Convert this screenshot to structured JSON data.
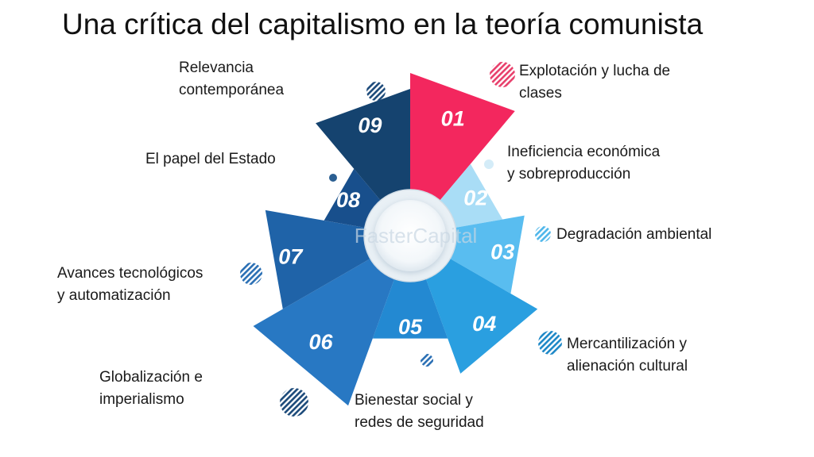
{
  "title": "Una crítica del capitalismo en la teoría comunista",
  "watermark": "FasterCapital",
  "segments": [
    {
      "number": "01",
      "label_lines": [
        "Explotación y lucha de",
        "clases"
      ],
      "color": "#f3275e"
    },
    {
      "number": "02",
      "label_lines": [
        "Ineficiencia económica",
        "y sobreproducción"
      ],
      "color": "#a9ddf6"
    },
    {
      "number": "03",
      "label_lines": [
        "Degradación ambiental"
      ],
      "color": "#59bdf0"
    },
    {
      "number": "04",
      "label_lines": [
        "Mercantilización y",
        "alienación cultural"
      ],
      "color": "#2a9fe0"
    },
    {
      "number": "05",
      "label_lines": [
        "Bienestar social y",
        "redes de seguridad"
      ],
      "color": "#2389d2"
    },
    {
      "number": "06",
      "label_lines": [
        "Globalización e",
        "imperialismo"
      ],
      "color": "#2878c3"
    },
    {
      "number": "07",
      "label_lines": [
        "Avances tecnológicos",
        "y automatización"
      ],
      "color": "#1f63a8"
    },
    {
      "number": "08",
      "label_lines": [
        "El papel del Estado"
      ],
      "color": "#184f8c"
    },
    {
      "number": "09",
      "label_lines": [
        "Relevancia",
        "contemporánea"
      ],
      "color": "#15436f"
    }
  ]
}
